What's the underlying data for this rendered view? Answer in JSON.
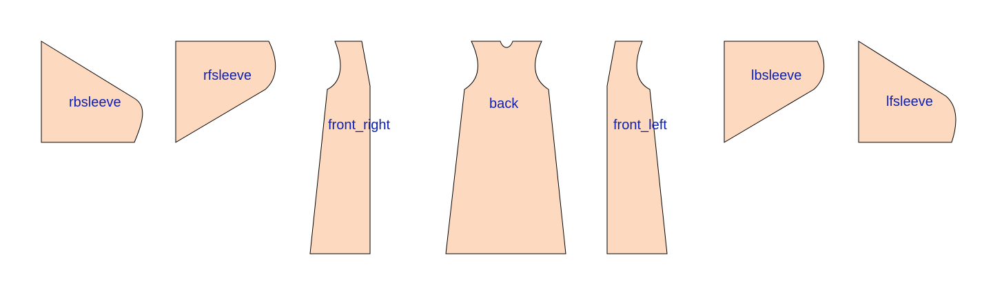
{
  "pieces": [
    {
      "id": "rbsleeve",
      "label": "rbsleeve"
    },
    {
      "id": "rfsleeve",
      "label": "rfsleeve"
    },
    {
      "id": "front_right",
      "label": "front_right"
    },
    {
      "id": "back",
      "label": "back"
    },
    {
      "id": "front_left",
      "label": "front_left"
    },
    {
      "id": "lbsleeve",
      "label": "lbsleeve"
    },
    {
      "id": "lfsleeve",
      "label": "lfsleeve"
    }
  ],
  "colors": {
    "piece_fill": "#fdd9c0",
    "piece_stroke": "#000000",
    "label_text": "#0b1fb5",
    "background": "#ffffff"
  }
}
